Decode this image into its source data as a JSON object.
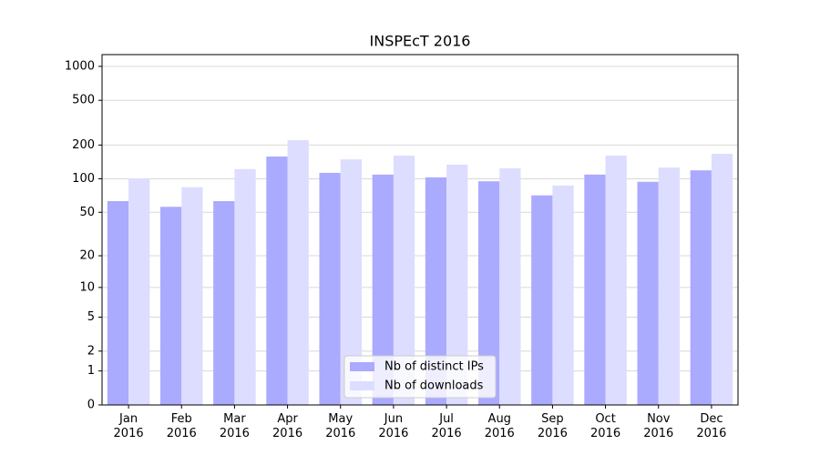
{
  "chart_data": {
    "type": "bar",
    "title": "INSPEcT 2016",
    "scale": "log1p",
    "categories": [
      "Jan\n2016",
      "Feb\n2016",
      "Mar\n2016",
      "Apr\n2016",
      "May\n2016",
      "Jun\n2016",
      "Jul\n2016",
      "Aug\n2016",
      "Sep\n2016",
      "Oct\n2016",
      "Nov\n2016",
      "Dec\n2016"
    ],
    "series": [
      {
        "name": "Nb of distinct IPs",
        "color": "#aaaaff",
        "values": [
          63,
          56,
          63,
          158,
          113,
          109,
          103,
          95,
          71,
          109,
          94,
          119
        ]
      },
      {
        "name": "Nb of downloads",
        "color": "#ddddff",
        "values": [
          101,
          84,
          122,
          221,
          149,
          161,
          134,
          124,
          87,
          161,
          126,
          167
        ]
      }
    ],
    "ylim": [
      0,
      1272
    ],
    "yticks": [
      0,
      1,
      2,
      5,
      10,
      20,
      50,
      100,
      200,
      500,
      1000
    ],
    "grid": true,
    "legend": "lower center"
  }
}
